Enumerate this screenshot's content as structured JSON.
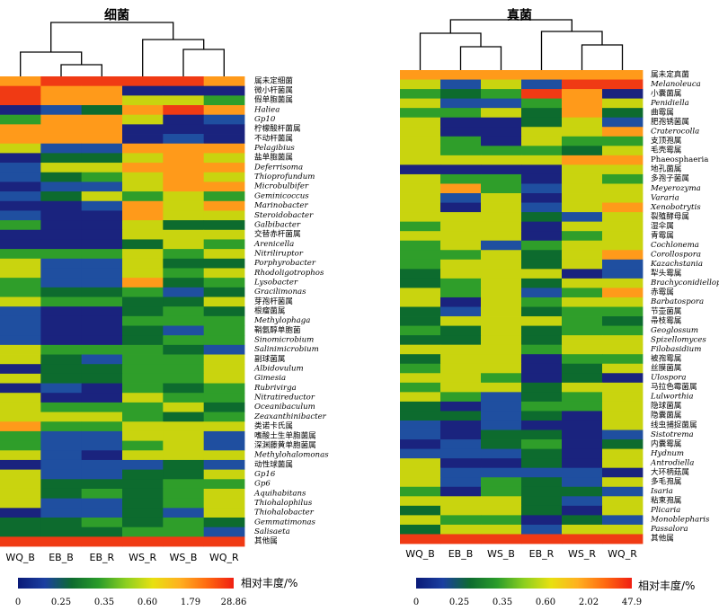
{
  "chart_data": [
    {
      "type": "heatmap",
      "title": "细菌",
      "columns": [
        "WQ_B",
        "EB_B",
        "EB_R",
        "WS_R",
        "WS_B",
        "WQ_R"
      ],
      "rows": [
        {
          "label": "属未定细菌",
          "italic": false
        },
        {
          "label": "微小杆菌属",
          "italic": false
        },
        {
          "label": "假单胞菌属",
          "italic": false
        },
        {
          "label": "Haliea",
          "italic": true
        },
        {
          "label": "Gp10",
          "italic": true
        },
        {
          "label": "柠檬酸杆菌属",
          "italic": false
        },
        {
          "label": "不动杆菌属",
          "italic": false
        },
        {
          "label": "Pelagibius",
          "italic": true
        },
        {
          "label": "盐单胞菌属",
          "italic": false
        },
        {
          "label": "Deferrisoma",
          "italic": true
        },
        {
          "label": "Thioprofundum",
          "italic": true
        },
        {
          "label": "Microbulbifer",
          "italic": true
        },
        {
          "label": "Geminicoccus",
          "italic": true
        },
        {
          "label": "Marinobacter",
          "italic": true
        },
        {
          "label": "Steroidobacter",
          "italic": true
        },
        {
          "label": "Galbibacter",
          "italic": true
        },
        {
          "label": "交替赤杆菌属",
          "italic": false
        },
        {
          "label": "Arenicella",
          "italic": true
        },
        {
          "label": "Nitriliruptor",
          "italic": true
        },
        {
          "label": "Porphyrobacter",
          "italic": true
        },
        {
          "label": "Rhodoligotrophos",
          "italic": true
        },
        {
          "label": "Lysobacter",
          "italic": true
        },
        {
          "label": "Gracilimonas",
          "italic": true
        },
        {
          "label": "芽孢杆菌属",
          "italic": false
        },
        {
          "label": "根瘤菌属",
          "italic": false
        },
        {
          "label": "Methylophaga",
          "italic": true
        },
        {
          "label": "鞘氨醇单胞菌",
          "italic": false
        },
        {
          "label": "Sinomicrobium",
          "italic": true
        },
        {
          "label": "Salinimicrobium",
          "italic": true
        },
        {
          "label": "副球菌属",
          "italic": false
        },
        {
          "label": "Albidovulum",
          "italic": true
        },
        {
          "label": "Gimesia",
          "italic": true
        },
        {
          "label": "Rubrivirga",
          "italic": true
        },
        {
          "label": "Nitratireductor",
          "italic": true
        },
        {
          "label": "Oceanibaculum",
          "italic": true
        },
        {
          "label": "Zeaxanthinibacter",
          "italic": true
        },
        {
          "label": "类诺卡氏属",
          "italic": false
        },
        {
          "label": "嗜酸土生单胞菌属",
          "italic": false
        },
        {
          "label": "深渊藤黄单胞菌属",
          "italic": false
        },
        {
          "label": "Methylohalomonas",
          "italic": true
        },
        {
          "label": "动性球菌属",
          "italic": false
        },
        {
          "label": "Gp16",
          "italic": true
        },
        {
          "label": "Gp6",
          "italic": true
        },
        {
          "label": "Aquihabitans",
          "italic": true
        },
        {
          "label": "Thiohalophilus",
          "italic": true
        },
        {
          "label": "Thiohalobacter",
          "italic": true
        },
        {
          "label": "Gemmatimonas",
          "italic": true
        },
        {
          "label": "Salisaeta",
          "italic": true
        },
        {
          "label": "其他属",
          "italic": false
        }
      ],
      "levels": [
        [
          5,
          6,
          6,
          6,
          6,
          5
        ],
        [
          6,
          5,
          5,
          0,
          0,
          0
        ],
        [
          6,
          5,
          5,
          4,
          4,
          3
        ],
        [
          0,
          1,
          2,
          5,
          6,
          5
        ],
        [
          3,
          5,
          5,
          4,
          0,
          1
        ],
        [
          5,
          5,
          5,
          0,
          0,
          0
        ],
        [
          5,
          5,
          5,
          0,
          1,
          0
        ],
        [
          4,
          1,
          1,
          5,
          5,
          5
        ],
        [
          0,
          2,
          2,
          4,
          5,
          4
        ],
        [
          1,
          4,
          4,
          5,
          5,
          5
        ],
        [
          1,
          2,
          3,
          4,
          5,
          4
        ],
        [
          0,
          1,
          1,
          4,
          5,
          5
        ],
        [
          1,
          2,
          4,
          3,
          4,
          3
        ],
        [
          0,
          0,
          1,
          5,
          4,
          5
        ],
        [
          1,
          0,
          0,
          5,
          4,
          4
        ],
        [
          3,
          0,
          0,
          4,
          2,
          2
        ],
        [
          0,
          0,
          0,
          4,
          4,
          4
        ],
        [
          0,
          0,
          0,
          2,
          4,
          3
        ],
        [
          3,
          3,
          3,
          4,
          3,
          4
        ],
        [
          4,
          1,
          1,
          4,
          2,
          2
        ],
        [
          4,
          1,
          1,
          4,
          3,
          4
        ],
        [
          3,
          1,
          1,
          5,
          2,
          3
        ],
        [
          3,
          2,
          2,
          3,
          1,
          2
        ],
        [
          4,
          3,
          3,
          2,
          2,
          4
        ],
        [
          1,
          0,
          0,
          2,
          3,
          2
        ],
        [
          1,
          0,
          0,
          3,
          3,
          3
        ],
        [
          1,
          0,
          0,
          2,
          1,
          3
        ],
        [
          1,
          0,
          0,
          2,
          3,
          3
        ],
        [
          4,
          3,
          3,
          3,
          2,
          1
        ],
        [
          4,
          2,
          1,
          3,
          3,
          4
        ],
        [
          0,
          2,
          2,
          3,
          3,
          4
        ],
        [
          4,
          2,
          2,
          3,
          3,
          4
        ],
        [
          0,
          1,
          0,
          3,
          2,
          3
        ],
        [
          4,
          0,
          0,
          4,
          3,
          3
        ],
        [
          4,
          3,
          3,
          3,
          4,
          2
        ],
        [
          4,
          4,
          4,
          3,
          2,
          3
        ],
        [
          5,
          3,
          3,
          4,
          4,
          4
        ],
        [
          3,
          1,
          1,
          4,
          4,
          1
        ],
        [
          3,
          1,
          1,
          3,
          4,
          1
        ],
        [
          4,
          1,
          0,
          4,
          4,
          4
        ],
        [
          0,
          1,
          1,
          1,
          2,
          1
        ],
        [
          4,
          1,
          1,
          2,
          2,
          4
        ],
        [
          4,
          2,
          2,
          2,
          3,
          3
        ],
        [
          4,
          2,
          3,
          2,
          3,
          4
        ],
        [
          4,
          1,
          1,
          2,
          3,
          4
        ],
        [
          0,
          1,
          1,
          2,
          1,
          4
        ],
        [
          2,
          2,
          3,
          2,
          3,
          2
        ],
        [
          2,
          2,
          2,
          3,
          3,
          1
        ],
        [
          6,
          6,
          6,
          6,
          6,
          6
        ]
      ],
      "legend": {
        "label": "相对丰度/%",
        "ticks": [
          "0",
          "0.25",
          "0.35",
          "0.60",
          "1.79",
          "28.86"
        ]
      }
    },
    {
      "type": "heatmap",
      "title": "真菌",
      "columns": [
        "WQ_B",
        "EB_B",
        "WS_B",
        "EB_R",
        "WS_R",
        "WQ_R"
      ],
      "rows": [
        {
          "label": "属未定真菌",
          "italic": false
        },
        {
          "label": "Melanoleuca",
          "italic": true
        },
        {
          "label": "小囊菌属",
          "italic": false
        },
        {
          "label": "Penidiella",
          "italic": true
        },
        {
          "label": "曲霉属",
          "italic": false
        },
        {
          "label": "肥孢锈菌属",
          "italic": false
        },
        {
          "label": "Craterocolla",
          "italic": true
        },
        {
          "label": "支顶孢属",
          "italic": false
        },
        {
          "label": "毛壳霉属",
          "italic": false
        },
        {
          "label": "Phaeosphaeria",
          "italic": false
        },
        {
          "label": "地孔菌属",
          "italic": false
        },
        {
          "label": "多孢子菌属",
          "italic": false
        },
        {
          "label": "Meyerozyma",
          "italic": true
        },
        {
          "label": "Vararia",
          "italic": true
        },
        {
          "label": "Xenobotrytis",
          "italic": true
        },
        {
          "label": "裂殖酵母属",
          "italic": false
        },
        {
          "label": "湿伞属",
          "italic": false
        },
        {
          "label": "青霉属",
          "italic": false
        },
        {
          "label": "Cochlonema",
          "italic": true
        },
        {
          "label": "Corollospora",
          "italic": true
        },
        {
          "label": "Kazachstania",
          "italic": true
        },
        {
          "label": "犁头霉属",
          "italic": false
        },
        {
          "label": "Brachyconidiellopsis",
          "italic": true
        },
        {
          "label": "赤霉属",
          "italic": false
        },
        {
          "label": "Barbatospora",
          "italic": true
        },
        {
          "label": "节壶菌属",
          "italic": false
        },
        {
          "label": "帚枝霉属",
          "italic": false
        },
        {
          "label": "Geoglossum",
          "italic": true
        },
        {
          "label": "Spizellomyces",
          "italic": true
        },
        {
          "label": "Filobasidium",
          "italic": true
        },
        {
          "label": "被孢霉属",
          "italic": false
        },
        {
          "label": "丝膜菌属",
          "italic": false
        },
        {
          "label": "Ulospora",
          "italic": true
        },
        {
          "label": "马拉色霉菌属",
          "italic": false
        },
        {
          "label": "Lulworthia",
          "italic": true
        },
        {
          "label": "隐球菌属",
          "italic": false
        },
        {
          "label": "隐囊菌属",
          "italic": false
        },
        {
          "label": "线虫捕捉菌属",
          "italic": false
        },
        {
          "label": "Sistotrema",
          "italic": true
        },
        {
          "label": "内囊霉属",
          "italic": false
        },
        {
          "label": "Hydnum",
          "italic": true
        },
        {
          "label": "Antrodiella",
          "italic": true
        },
        {
          "label": "大环柄菇属",
          "italic": false
        },
        {
          "label": "多毛孢属",
          "italic": false
        },
        {
          "label": "Isaria",
          "italic": true
        },
        {
          "label": "粘束孢属",
          "italic": false
        },
        {
          "label": "Plicaria",
          "italic": true
        },
        {
          "label": "Monoblepharis",
          "italic": true
        },
        {
          "label": "Passalora",
          "italic": true
        },
        {
          "label": "其他属",
          "italic": false
        }
      ],
      "levels": [
        [
          5,
          5,
          5,
          5,
          5,
          5
        ],
        [
          4,
          1,
          4,
          1,
          6,
          6
        ],
        [
          3,
          2,
          3,
          6,
          5,
          0
        ],
        [
          4,
          1,
          1,
          3,
          5,
          4
        ],
        [
          3,
          3,
          4,
          2,
          5,
          2
        ],
        [
          4,
          0,
          0,
          2,
          4,
          1
        ],
        [
          4,
          0,
          0,
          4,
          4,
          5
        ],
        [
          4,
          3,
          0,
          4,
          3,
          3
        ],
        [
          4,
          3,
          3,
          3,
          2,
          4
        ],
        [
          4,
          4,
          4,
          4,
          5,
          5
        ],
        [
          0,
          0,
          0,
          0,
          4,
          4
        ],
        [
          4,
          3,
          3,
          0,
          4,
          3
        ],
        [
          4,
          5,
          3,
          1,
          4,
          4
        ],
        [
          4,
          1,
          4,
          0,
          4,
          4
        ],
        [
          4,
          0,
          4,
          1,
          4,
          5
        ],
        [
          4,
          4,
          4,
          2,
          1,
          4
        ],
        [
          3,
          4,
          4,
          0,
          4,
          4
        ],
        [
          4,
          4,
          4,
          0,
          3,
          4
        ],
        [
          3,
          4,
          1,
          3,
          4,
          4
        ],
        [
          3,
          3,
          4,
          2,
          4,
          5
        ],
        [
          3,
          4,
          4,
          2,
          4,
          1
        ],
        [
          2,
          4,
          4,
          4,
          0,
          1
        ],
        [
          2,
          3,
          4,
          2,
          4,
          4
        ],
        [
          4,
          3,
          4,
          1,
          3,
          5
        ],
        [
          4,
          0,
          4,
          3,
          4,
          4
        ],
        [
          2,
          1,
          4,
          2,
          3,
          3
        ],
        [
          2,
          4,
          4,
          4,
          3,
          2
        ],
        [
          3,
          2,
          4,
          2,
          3,
          3
        ],
        [
          2,
          2,
          4,
          2,
          4,
          4
        ],
        [
          4,
          4,
          4,
          3,
          4,
          4
        ],
        [
          2,
          4,
          4,
          0,
          3,
          3
        ],
        [
          3,
          4,
          4,
          0,
          2,
          4
        ],
        [
          4,
          4,
          3,
          0,
          2,
          0
        ],
        [
          3,
          4,
          4,
          2,
          4,
          4
        ],
        [
          4,
          3,
          1,
          2,
          3,
          4
        ],
        [
          2,
          0,
          1,
          3,
          3,
          4
        ],
        [
          2,
          2,
          1,
          2,
          0,
          4
        ],
        [
          1,
          0,
          1,
          0,
          0,
          4
        ],
        [
          1,
          0,
          2,
          2,
          0,
          1
        ],
        [
          0,
          1,
          2,
          3,
          0,
          2
        ],
        [
          1,
          1,
          1,
          2,
          0,
          4
        ],
        [
          4,
          0,
          0,
          2,
          0,
          4
        ],
        [
          4,
          1,
          1,
          1,
          1,
          0
        ],
        [
          4,
          1,
          3,
          2,
          1,
          4
        ],
        [
          3,
          0,
          3,
          2,
          2,
          1
        ],
        [
          4,
          4,
          4,
          2,
          1,
          4
        ],
        [
          2,
          4,
          4,
          2,
          0,
          4
        ],
        [
          4,
          3,
          3,
          0,
          2,
          1
        ],
        [
          2,
          4,
          4,
          1,
          4,
          4
        ],
        [
          6,
          6,
          6,
          6,
          6,
          6
        ]
      ],
      "legend": {
        "label": "相对丰度/%",
        "ticks": [
          "0",
          "0.25",
          "0.35",
          "0.60",
          "2.02",
          "47.9"
        ]
      }
    }
  ]
}
